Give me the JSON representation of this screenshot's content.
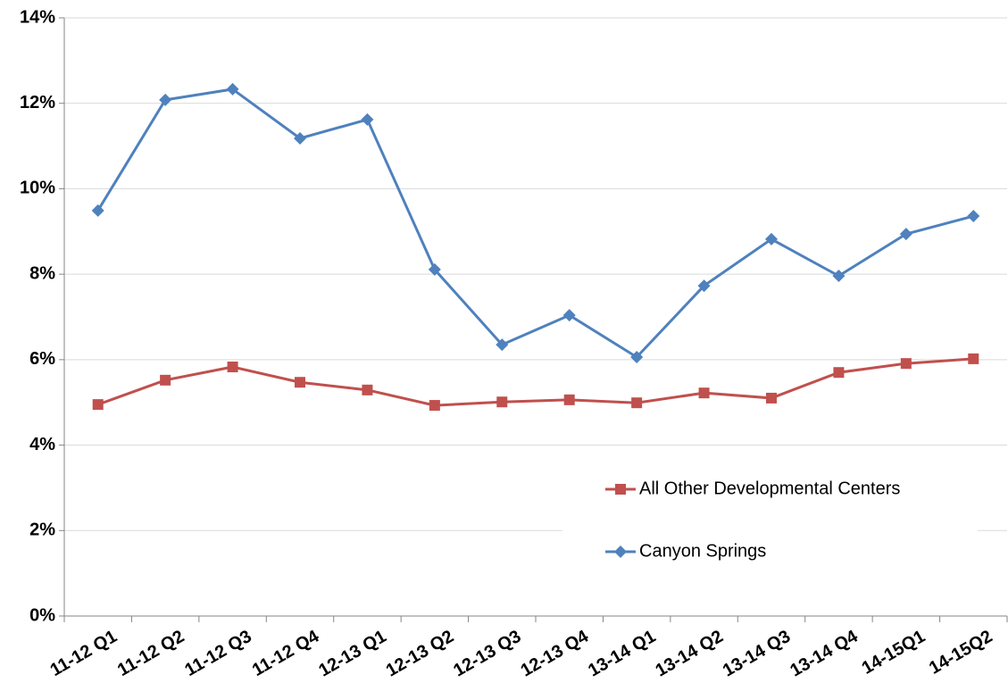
{
  "chart_data": {
    "type": "line",
    "categories": [
      "11-12 Q1",
      "11-12 Q2",
      "11-12 Q3",
      "11-12 Q4",
      "12-13 Q1",
      "12-13 Q2",
      "12-13 Q3",
      "12-13 Q4",
      "13-14 Q1",
      "13-14 Q2",
      "13-14 Q3",
      "13-14 Q4",
      "14-15Q1",
      "14-15Q2"
    ],
    "series": [
      {
        "name": "All Other Developmental Centers",
        "color": "#c0504d",
        "marker": "square",
        "values": [
          4.95,
          5.52,
          5.83,
          5.47,
          5.29,
          4.93,
          5.01,
          5.06,
          4.99,
          5.22,
          5.1,
          5.7,
          5.91,
          6.02
        ]
      },
      {
        "name": "Canyon Springs",
        "color": "#4f81bd",
        "marker": "diamond",
        "values": [
          9.49,
          12.08,
          12.33,
          11.18,
          11.62,
          8.11,
          6.35,
          7.04,
          6.06,
          7.73,
          8.82,
          7.96,
          8.94,
          9.36
        ]
      }
    ],
    "ylim": [
      0,
      14
    ],
    "yticks": [
      {
        "value": 0,
        "label": "0%"
      },
      {
        "value": 2,
        "label": "2%"
      },
      {
        "value": 4,
        "label": "4%"
      },
      {
        "value": 6,
        "label": "6%"
      },
      {
        "value": 8,
        "label": "8%"
      },
      {
        "value": 10,
        "label": "10%"
      },
      {
        "value": 12,
        "label": "12%"
      },
      {
        "value": 14,
        "label": "14%"
      }
    ],
    "grid": true,
    "legend": "right"
  }
}
